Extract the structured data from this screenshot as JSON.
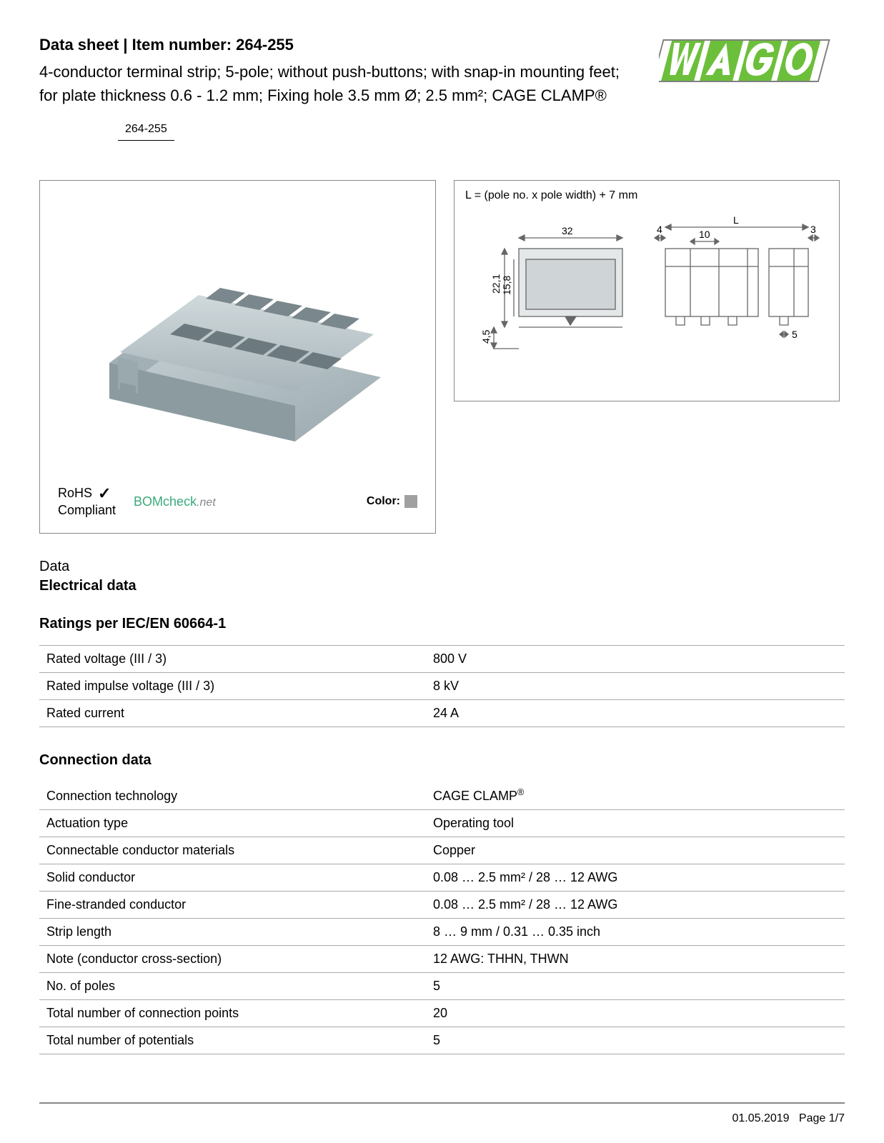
{
  "header": {
    "title_prefix": "Data sheet",
    "title_separator": "  |  ",
    "item_number_label": "Item number:",
    "item_number": "264-255",
    "description": "4-conductor terminal strip; 5-pole; without push-buttons; with snap-in mounting feet; for plate thickness 0.6 - 1.2 mm; Fixing hole 3.5 mm Ø; 2.5 mm²; CAGE CLAMP®",
    "item_number_repeat": "264-255"
  },
  "logo": {
    "name": "WAGO",
    "colors": {
      "green": "#6cbf3a",
      "grey": "#808080",
      "white": "#ffffff"
    }
  },
  "product_image": {
    "body_color": "#b5c3c8",
    "shadow_color": "#d8dee0"
  },
  "diagram": {
    "caption": "L = (pole no. x pole width) + 7 mm",
    "dims": {
      "total_width_front": "32",
      "height_outer": "22,1",
      "height_inner": "15,8",
      "foot_height": "4,5",
      "left_offset": "4",
      "pitch": "10",
      "right_offset": "3",
      "pin": "5",
      "length_label": "L"
    },
    "line_color": "#666666",
    "fill_color": "#cfd4d6"
  },
  "badges": {
    "rohs_line1": "RoHS",
    "rohs_line2": "Compliant",
    "bomcheck_main": "BOMcheck",
    "bomcheck_suffix": ".net",
    "color_label": "Color:",
    "color_swatch": "#a0a0a0"
  },
  "sections": {
    "data_label": "Data",
    "electrical_heading": "Electrical data",
    "ratings_heading": "Ratings per IEC/EN 60664-1",
    "connection_heading": "Connection data"
  },
  "ratings_table": [
    {
      "label": "Rated voltage (III / 3)",
      "value": "800 V"
    },
    {
      "label": "Rated impulse voltage (III / 3)",
      "value": "8 kV"
    },
    {
      "label": "Rated current",
      "value": "24 A"
    }
  ],
  "connection_table": [
    {
      "label": "Connection technology",
      "value_html": "CAGE CLAMP®",
      "sup": true
    },
    {
      "label": "Actuation type",
      "value": "Operating tool"
    },
    {
      "label": "Connectable conductor materials",
      "value": "Copper"
    },
    {
      "label": "Solid conductor",
      "value": "0.08 … 2.5 mm² / 28 … 12 AWG"
    },
    {
      "label": "Fine-stranded conductor",
      "value": "0.08 … 2.5 mm² / 28 … 12 AWG"
    },
    {
      "label": "Strip length",
      "value": "8 … 9 mm / 0.31 … 0.35 inch"
    },
    {
      "label": "Note (conductor cross-section)",
      "value": "12 AWG: THHN, THWN"
    },
    {
      "label": "No. of poles",
      "value": "5"
    },
    {
      "label": "Total number of connection points",
      "value": "20"
    },
    {
      "label": "Total number of potentials",
      "value": "5"
    }
  ],
  "footer": {
    "date": "01.05.2019",
    "page_label": "Page",
    "page": "1/7"
  }
}
